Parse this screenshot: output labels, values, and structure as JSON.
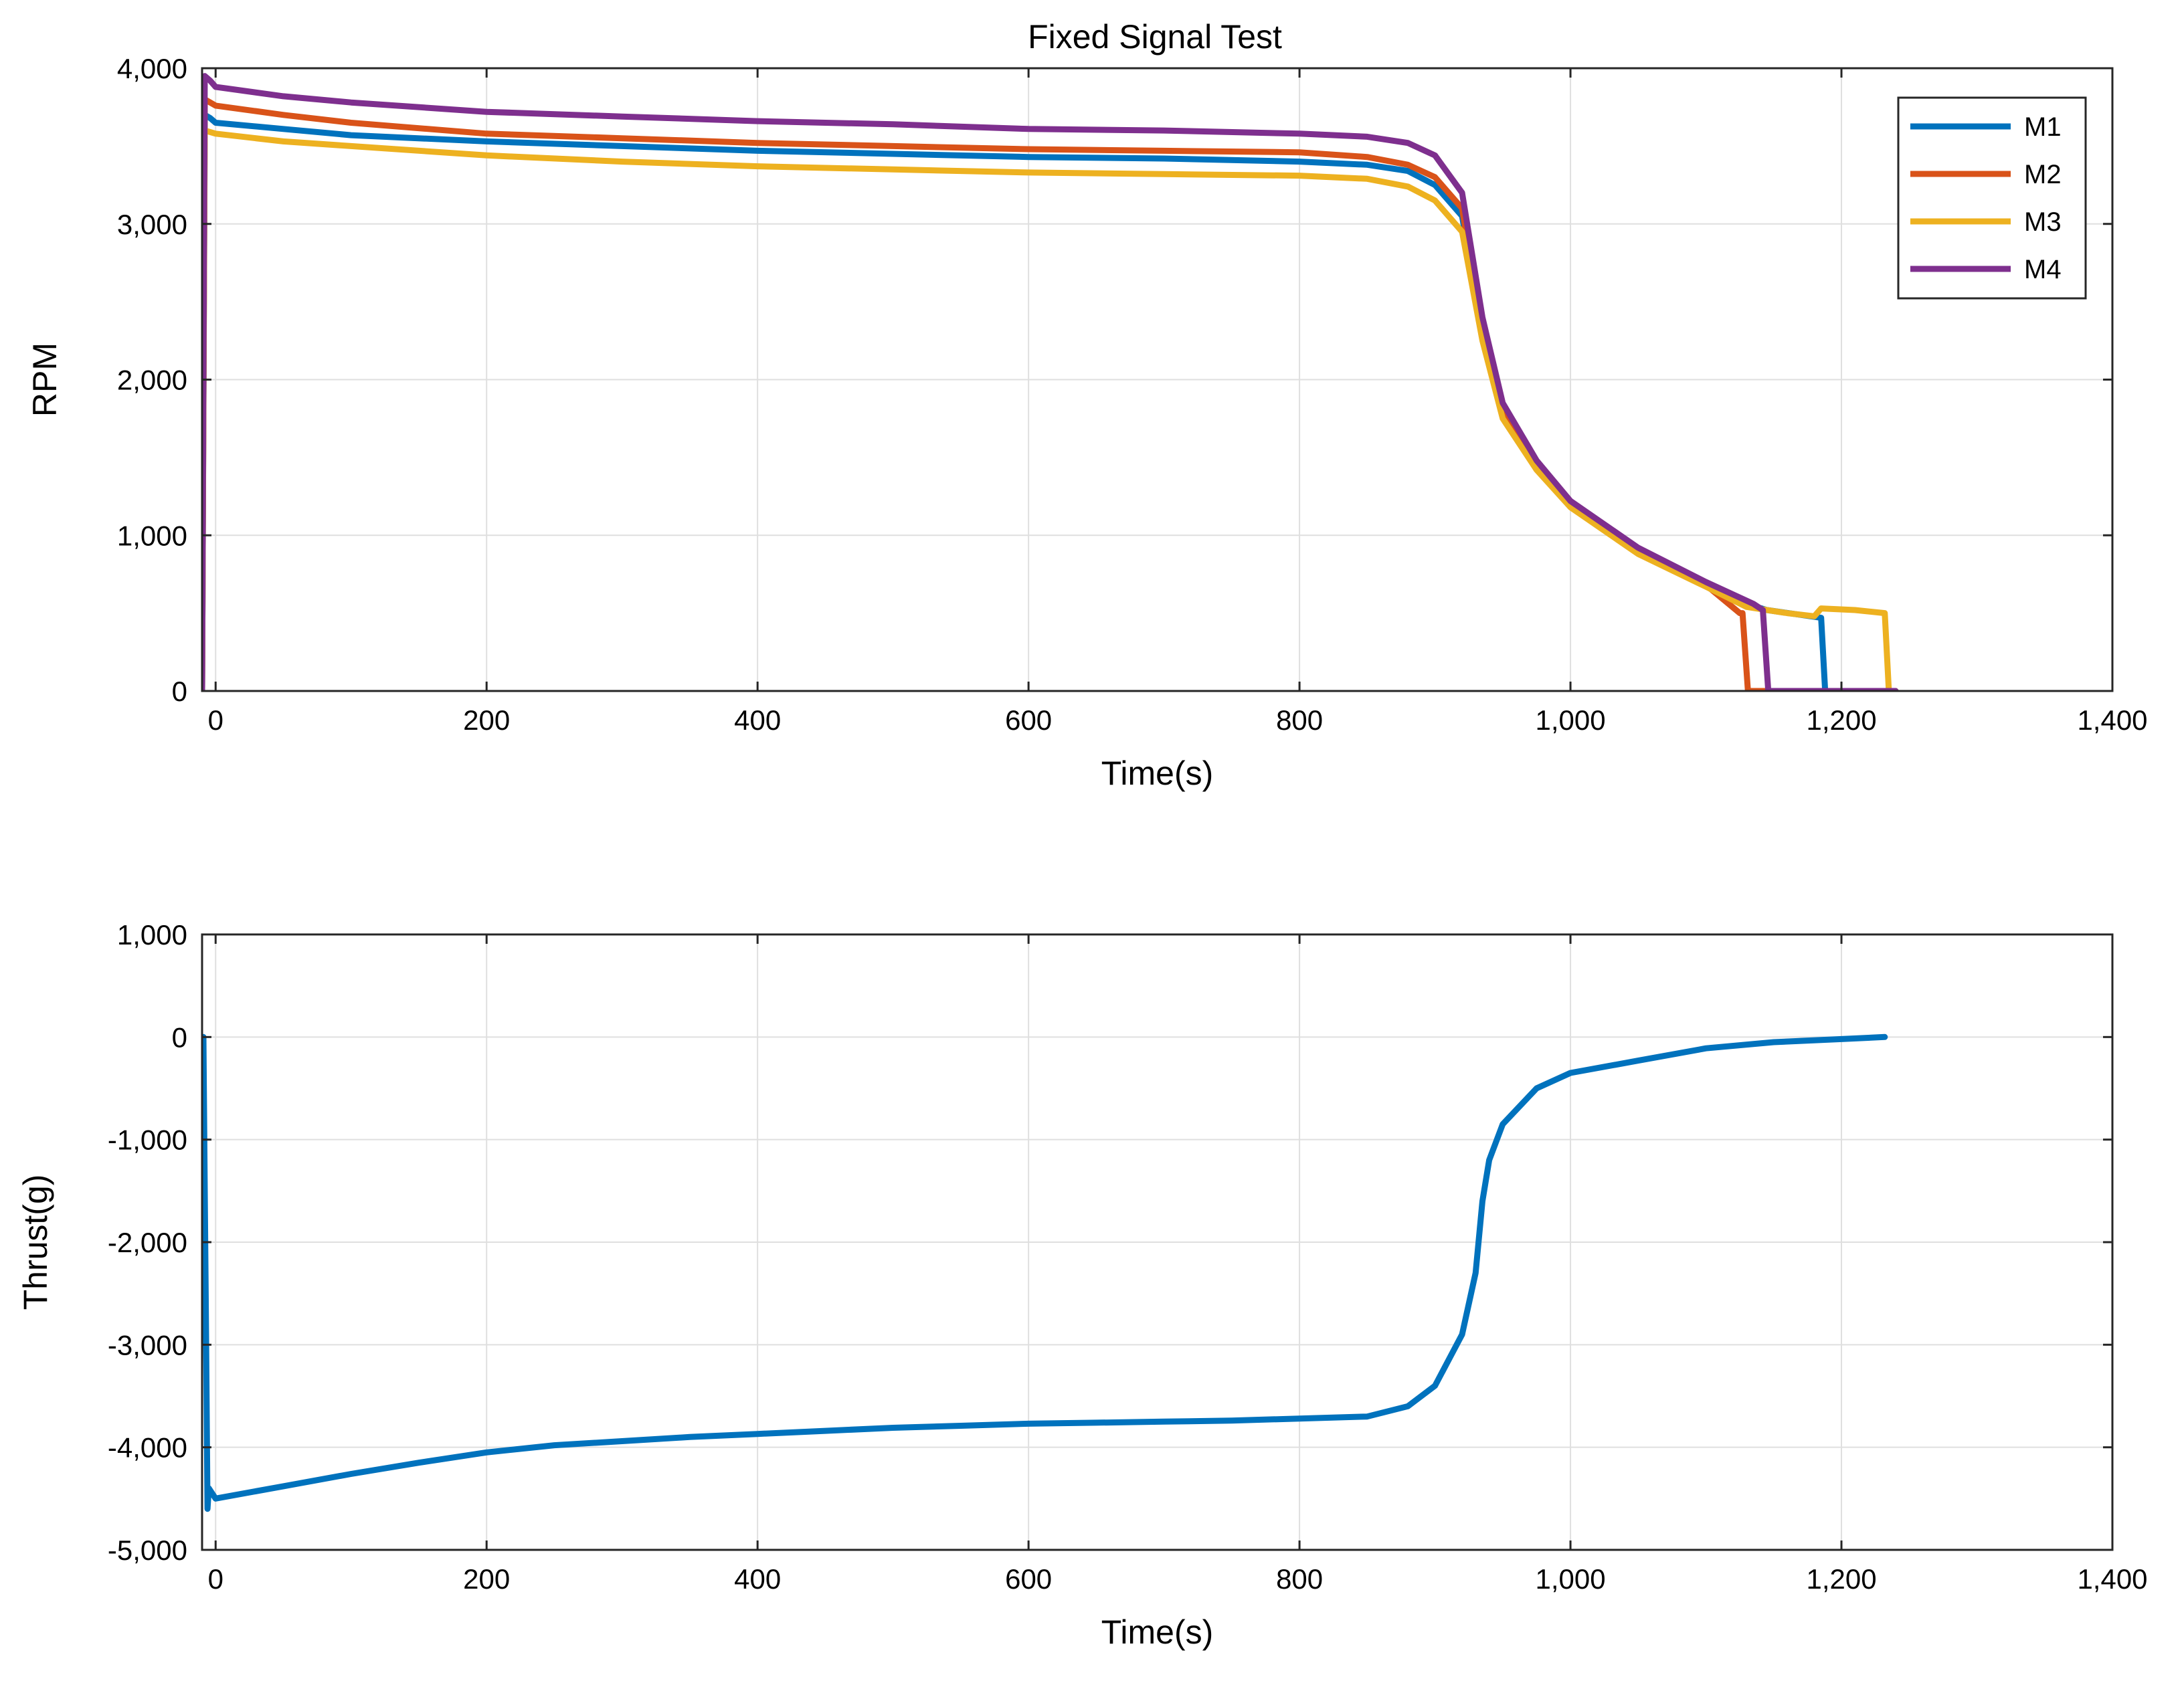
{
  "figure": {
    "title": "Fixed Signal Test"
  },
  "chart_data": [
    {
      "type": "line",
      "title": "Fixed Signal Test",
      "xlabel": "Time(s)",
      "ylabel": "RPM",
      "xlim": [
        -10,
        1400
      ],
      "ylim": [
        0,
        4000
      ],
      "xticks": [
        0,
        200,
        400,
        600,
        800,
        1000,
        1200,
        1400
      ],
      "xtick_labels": [
        "0",
        "200",
        "400",
        "600",
        "800",
        "1,000",
        "1,200",
        "1,400"
      ],
      "yticks": [
        0,
        1000,
        2000,
        3000,
        4000
      ],
      "ytick_labels": [
        "0",
        "1,000",
        "2,000",
        "3,000",
        "4,000"
      ],
      "grid": true,
      "legend": "top-right",
      "series": [
        {
          "name": "M1",
          "color": "#0072BD",
          "x": [
            -10,
            -8,
            -4,
            0,
            50,
            100,
            200,
            300,
            400,
            500,
            600,
            700,
            800,
            850,
            880,
            900,
            920,
            935,
            950,
            975,
            1000,
            1050,
            1100,
            1130,
            1145,
            1185,
            1188,
            1240
          ],
          "y": [
            0,
            3700,
            3680,
            3650,
            3610,
            3570,
            3530,
            3500,
            3470,
            3450,
            3430,
            3420,
            3400,
            3380,
            3340,
            3250,
            3050,
            2300,
            1800,
            1450,
            1200,
            900,
            680,
            560,
            520,
            470,
            0,
            0
          ]
        },
        {
          "name": "M2",
          "color": "#D95319",
          "x": [
            -10,
            -8,
            -4,
            0,
            50,
            100,
            200,
            300,
            400,
            500,
            600,
            700,
            800,
            850,
            880,
            900,
            920,
            935,
            950,
            975,
            1000,
            1050,
            1100,
            1125,
            1127,
            1131,
            1240
          ],
          "y": [
            0,
            3800,
            3780,
            3760,
            3700,
            3650,
            3580,
            3550,
            3520,
            3500,
            3480,
            3470,
            3460,
            3430,
            3380,
            3300,
            3100,
            2300,
            1800,
            1450,
            1200,
            900,
            680,
            500,
            500,
            0,
            0
          ]
        },
        {
          "name": "M3",
          "color": "#EDB120",
          "x": [
            -10,
            -8,
            -4,
            0,
            50,
            100,
            200,
            300,
            400,
            500,
            600,
            700,
            800,
            850,
            880,
            900,
            920,
            935,
            950,
            975,
            1000,
            1050,
            1100,
            1130,
            1160,
            1180,
            1185,
            1210,
            1232,
            1235,
            1240
          ],
          "y": [
            0,
            3600,
            3590,
            3580,
            3530,
            3500,
            3440,
            3400,
            3370,
            3350,
            3330,
            3320,
            3310,
            3290,
            3240,
            3150,
            2950,
            2250,
            1750,
            1420,
            1180,
            880,
            670,
            540,
            500,
            480,
            530,
            520,
            500,
            0,
            0
          ]
        },
        {
          "name": "M4",
          "color": "#7E2F8E",
          "x": [
            -10,
            -8,
            -4,
            0,
            50,
            100,
            200,
            300,
            400,
            500,
            600,
            700,
            800,
            850,
            880,
            900,
            920,
            935,
            950,
            975,
            1000,
            1050,
            1100,
            1135,
            1142,
            1146,
            1240
          ],
          "y": [
            0,
            3950,
            3920,
            3880,
            3820,
            3780,
            3720,
            3690,
            3660,
            3640,
            3610,
            3600,
            3580,
            3560,
            3520,
            3440,
            3200,
            2400,
            1850,
            1480,
            1220,
            920,
            700,
            560,
            520,
            0,
            0
          ]
        }
      ]
    },
    {
      "type": "line",
      "xlabel": "Time(s)",
      "ylabel": "Thrust(g)",
      "xlim": [
        -10,
        1400
      ],
      "ylim": [
        -5000,
        1000
      ],
      "xticks": [
        0,
        200,
        400,
        600,
        800,
        1000,
        1200,
        1400
      ],
      "xtick_labels": [
        "0",
        "200",
        "400",
        "600",
        "800",
        "1,000",
        "1,200",
        "1,400"
      ],
      "yticks": [
        -5000,
        -4000,
        -3000,
        -2000,
        -1000,
        0,
        1000
      ],
      "ytick_labels": [
        "-5,000",
        "-4,000",
        "-3,000",
        "-2,000",
        "-1,000",
        "0",
        "1,000"
      ],
      "grid": true,
      "series": [
        {
          "name": "Thrust",
          "color": "#0072BD",
          "x": [
            -9,
            -8,
            -7,
            -6,
            -5,
            0,
            50,
            100,
            150,
            200,
            250,
            300,
            350,
            400,
            450,
            500,
            550,
            600,
            650,
            700,
            750,
            800,
            850,
            880,
            900,
            920,
            930,
            935,
            940,
            950,
            975,
            1000,
            1050,
            1100,
            1150,
            1200,
            1232
          ],
          "y": [
            0,
            -1500,
            -3000,
            -4600,
            -4400,
            -4500,
            -4380,
            -4260,
            -4150,
            -4050,
            -3980,
            -3940,
            -3900,
            -3870,
            -3840,
            -3810,
            -3790,
            -3770,
            -3760,
            -3750,
            -3740,
            -3720,
            -3700,
            -3600,
            -3400,
            -2900,
            -2300,
            -1600,
            -1200,
            -850,
            -500,
            -350,
            -230,
            -110,
            -50,
            -20,
            0
          ]
        }
      ]
    }
  ]
}
